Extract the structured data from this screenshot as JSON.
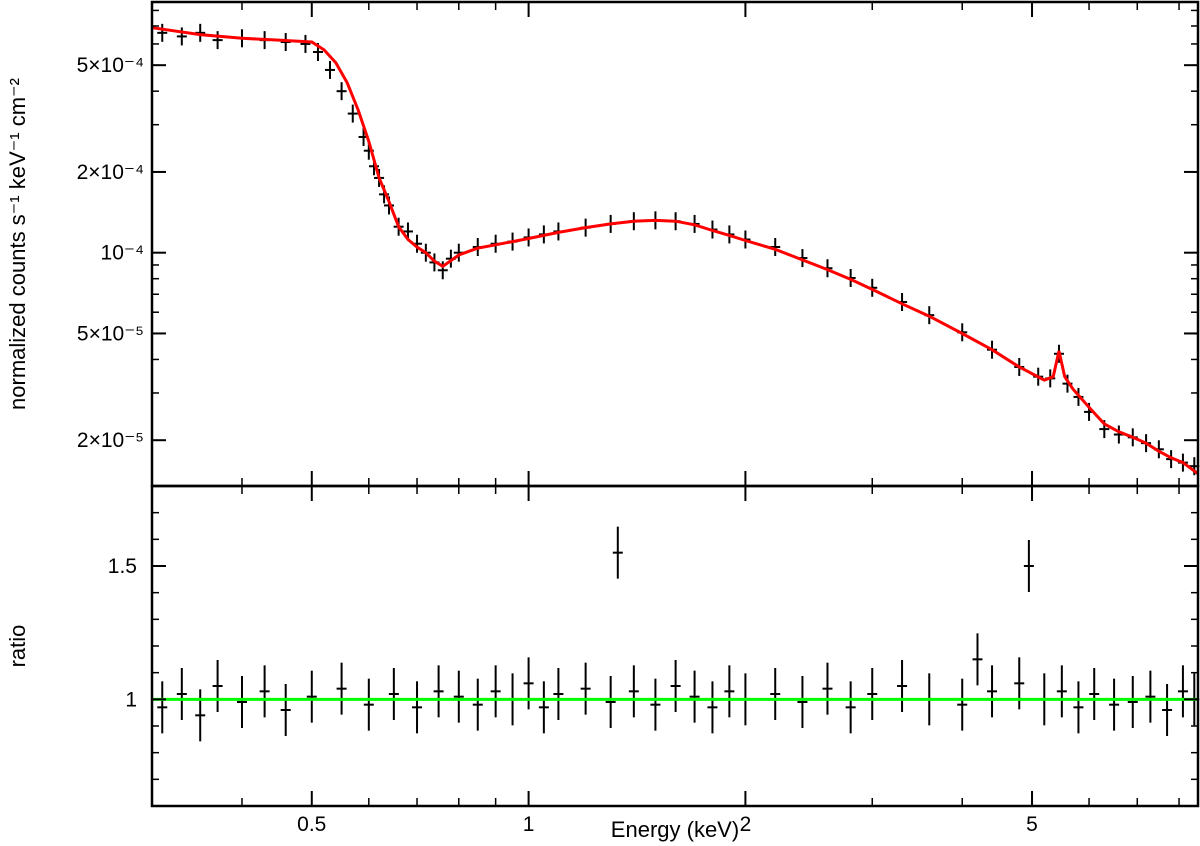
{
  "colors": {
    "data": "#000000",
    "model": "#ff0000",
    "unity_line": "#00ff00",
    "background": "#ffffff"
  },
  "chart_data": [
    {
      "type": "line",
      "panel": "top",
      "xlabel": "Energy (keV)",
      "ylabel": "normalized counts s⁻¹ keV⁻¹ cm⁻²",
      "xscale": "log",
      "yscale": "log",
      "xlim": [
        0.3,
        8.5
      ],
      "ylim": [
        1.35e-05,
        0.00086
      ],
      "yticks": [
        {
          "value": 2e-05,
          "label": "2×10⁻⁵"
        },
        {
          "value": 5e-05,
          "label": "5×10⁻⁵"
        },
        {
          "value": 0.0001,
          "label": "10⁻⁴"
        },
        {
          "value": 0.0002,
          "label": "2×10⁻⁴"
        },
        {
          "value": 0.0005,
          "label": "5×10⁻⁴"
        }
      ],
      "legend": "none",
      "grid": false,
      "series": [
        {
          "role": "data (error bars)",
          "color": "#000000",
          "x": [
            0.31,
            0.33,
            0.35,
            0.37,
            0.4,
            0.43,
            0.46,
            0.49,
            0.51,
            0.53,
            0.55,
            0.57,
            0.59,
            0.6,
            0.61,
            0.62,
            0.63,
            0.64,
            0.66,
            0.68,
            0.7,
            0.72,
            0.74,
            0.76,
            0.78,
            0.8,
            0.85,
            0.9,
            0.95,
            1.0,
            1.05,
            1.1,
            1.2,
            1.3,
            1.4,
            1.5,
            1.6,
            1.7,
            1.8,
            1.9,
            2.0,
            2.2,
            2.4,
            2.6,
            2.8,
            3.0,
            3.3,
            3.6,
            4.0,
            4.4,
            4.8,
            5.1,
            5.3,
            5.45,
            5.6,
            5.8,
            6.0,
            6.3,
            6.6,
            6.9,
            7.2,
            7.5,
            7.8,
            8.1,
            8.4
          ],
          "y": [
            0.00066,
            0.00064,
            0.00066,
            0.00062,
            0.00063,
            0.00062,
            0.00061,
            0.0006,
            0.00056,
            0.00048,
            0.0004,
            0.00033,
            0.00027,
            0.00024,
            0.00021,
            0.00019,
            0.000165,
            0.00015,
            0.000125,
            0.00012,
            0.000108,
            0.0001,
            9.2e-05,
            8.6e-05,
            9.5e-05,
            0.0001,
            0.000105,
            0.000108,
            0.00011,
            0.000114,
            0.000117,
            0.00012,
            0.000124,
            0.000128,
            0.000131,
            0.000132,
            0.000131,
            0.000128,
            0.000122,
            0.000117,
            0.000112,
            0.000105,
            9.55e-05,
            8.75e-05,
            8.05e-05,
            7.4e-05,
            6.55e-05,
            5.85e-05,
            5.05e-05,
            4.35e-05,
            3.75e-05,
            3.45e-05,
            3.4e-05,
            4.2e-05,
            3.25e-05,
            2.9e-05,
            2.55e-05,
            2.2e-05,
            2.1e-05,
            2.05e-05,
            1.95e-05,
            1.85e-05,
            1.7e-05,
            1.65e-05,
            1.6e-05
          ]
        },
        {
          "role": "model",
          "color": "#ff0000",
          "x": [
            0.3,
            0.35,
            0.4,
            0.45,
            0.5,
            0.52,
            0.54,
            0.56,
            0.58,
            0.6,
            0.62,
            0.64,
            0.66,
            0.68,
            0.7,
            0.72,
            0.74,
            0.76,
            0.8,
            0.85,
            0.9,
            0.95,
            1.0,
            1.1,
            1.2,
            1.3,
            1.4,
            1.5,
            1.6,
            1.7,
            1.8,
            1.9,
            2.0,
            2.2,
            2.4,
            2.6,
            2.8,
            3.0,
            3.3,
            3.6,
            4.0,
            4.4,
            4.8,
            5.2,
            5.35,
            5.45,
            5.55,
            5.7,
            6.0,
            6.3,
            6.6,
            6.9,
            7.2,
            7.5,
            7.8,
            8.1,
            8.5
          ],
          "y": [
            0.00069,
            0.00065,
            0.00063,
            0.00062,
            0.00061,
            0.00057,
            0.00051,
            0.00043,
            0.00034,
            0.00026,
            0.00019,
            0.000155,
            0.000125,
            0.000112,
            0.000105,
            0.0001,
            9.3e-05,
            8.9e-05,
            9.8e-05,
            0.000104,
            0.000107,
            0.00011,
            0.000113,
            0.000119,
            0.000124,
            0.000128,
            0.000131,
            0.000132,
            0.000131,
            0.000127,
            0.000121,
            0.000116,
            0.000111,
            0.000103,
            9.4e-05,
            8.65e-05,
            7.95e-05,
            7.3e-05,
            6.45e-05,
            5.8e-05,
            5e-05,
            4.35e-05,
            3.75e-05,
            3.35e-05,
            3.45e-05,
            4.3e-05,
            3.45e-05,
            3.1e-05,
            2.65e-05,
            2.3e-05,
            2.15e-05,
            2.05e-05,
            1.95e-05,
            1.82e-05,
            1.72e-05,
            1.65e-05,
            1.5e-05
          ]
        }
      ]
    },
    {
      "type": "line",
      "panel": "bottom",
      "xlabel": "Energy (keV)",
      "ylabel": "ratio",
      "xscale": "log",
      "yscale": "linear",
      "xlim": [
        0.3,
        8.5
      ],
      "ylim": [
        0.6,
        1.8
      ],
      "yticks": [
        {
          "value": 1,
          "label": "1"
        },
        {
          "value": 1.5,
          "label": "1.5"
        }
      ],
      "xticks": [
        {
          "value": 0.5,
          "label": "0.5"
        },
        {
          "value": 1,
          "label": "1"
        },
        {
          "value": 2,
          "label": "2"
        },
        {
          "value": 5,
          "label": "5"
        }
      ],
      "legend": "none",
      "grid": false,
      "series": [
        {
          "role": "ratio (error bars)",
          "color": "#000000",
          "x": [
            0.31,
            0.33,
            0.35,
            0.37,
            0.4,
            0.43,
            0.46,
            0.5,
            0.55,
            0.6,
            0.65,
            0.7,
            0.75,
            0.8,
            0.85,
            0.9,
            0.95,
            1.0,
            1.05,
            1.1,
            1.2,
            1.3,
            1.33,
            1.4,
            1.5,
            1.6,
            1.7,
            1.8,
            1.9,
            2.0,
            2.2,
            2.4,
            2.6,
            2.8,
            3.0,
            3.3,
            3.6,
            4.0,
            4.2,
            4.4,
            4.8,
            4.95,
            5.2,
            5.5,
            5.8,
            6.1,
            6.5,
            6.9,
            7.3,
            7.7,
            8.1,
            8.4
          ],
          "y": [
            0.97,
            1.02,
            0.94,
            1.05,
            0.99,
            1.03,
            0.96,
            1.01,
            1.04,
            0.98,
            1.02,
            0.97,
            1.03,
            1.01,
            0.98,
            1.03,
            1.0,
            1.06,
            0.97,
            1.02,
            1.04,
            0.99,
            1.55,
            1.03,
            0.98,
            1.05,
            1.01,
            0.97,
            1.03,
            1.0,
            1.02,
            0.99,
            1.04,
            0.97,
            1.02,
            1.05,
            1.0,
            0.98,
            1.15,
            1.03,
            1.06,
            1.5,
            1.0,
            1.03,
            0.97,
            1.02,
            0.98,
            0.99,
            1.01,
            0.96,
            1.03,
            1.0
          ]
        },
        {
          "role": "unity line",
          "color": "#00ff00",
          "x": [
            0.3,
            8.5
          ],
          "y": [
            1,
            1
          ]
        }
      ]
    }
  ]
}
